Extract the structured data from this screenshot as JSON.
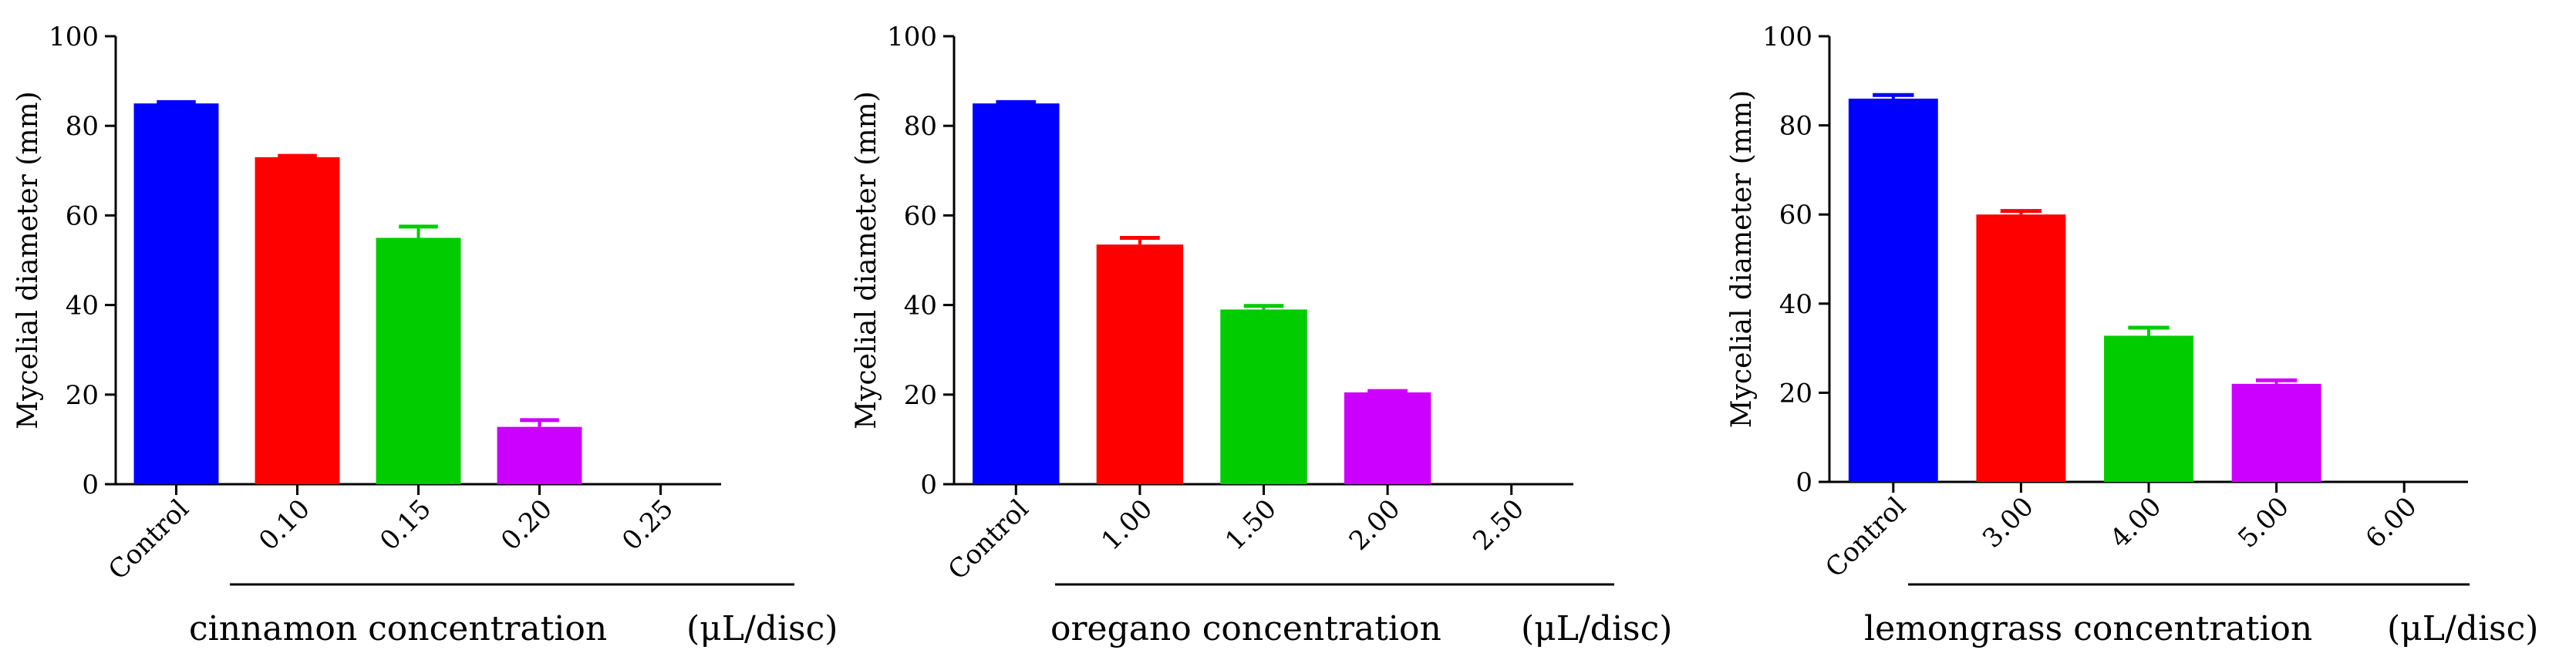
{
  "chart_data": [
    {
      "type": "bar",
      "title": "",
      "ylabel": "Mycelial diameter (mm)",
      "xlabel": "cinnamon concentration",
      "xunit": "(μL/disc)",
      "ylim": [
        0,
        100
      ],
      "yticks": [
        0,
        20,
        40,
        60,
        80,
        100
      ],
      "categories": [
        "Control",
        "0.10",
        "0.15",
        "0.20",
        "0.25"
      ],
      "values": [
        85.0,
        73.0,
        55.0,
        12.8,
        0
      ],
      "errors": [
        0.3,
        0.3,
        2.5,
        1.5,
        0
      ],
      "colors": [
        "#0000ff",
        "#ff0000",
        "#00cc00",
        "#cc00ff",
        "#999999"
      ]
    },
    {
      "type": "bar",
      "title": "",
      "ylabel": "Mycelial diameter (mm)",
      "xlabel": "oregano concentration",
      "xunit": "(μL/disc)",
      "ylim": [
        0,
        100
      ],
      "yticks": [
        0,
        20,
        40,
        60,
        80,
        100
      ],
      "categories": [
        "Control",
        "1.00",
        "1.50",
        "2.00",
        "2.50"
      ],
      "values": [
        85.0,
        53.5,
        39.0,
        20.5,
        0
      ],
      "errors": [
        0.3,
        1.5,
        0.8,
        0.3,
        0
      ],
      "colors": [
        "#0000ff",
        "#ff0000",
        "#00cc00",
        "#cc00ff",
        "#999999"
      ]
    },
    {
      "type": "bar",
      "title": "",
      "ylabel": "Mycelial diameter (mm)",
      "xlabel": "lemongrass concentration",
      "xunit": "(μL/disc)",
      "ylim": [
        0,
        100
      ],
      "yticks": [
        0,
        20,
        40,
        60,
        80,
        100
      ],
      "categories": [
        "Control",
        "3.00",
        "4.00",
        "5.00",
        "6.00"
      ],
      "values": [
        86.0,
        60.0,
        32.8,
        22.0,
        0
      ],
      "errors": [
        0.8,
        0.8,
        1.8,
        0.8,
        0
      ],
      "colors": [
        "#0000ff",
        "#ff0000",
        "#00cc00",
        "#cc00ff",
        "#999999"
      ]
    }
  ]
}
